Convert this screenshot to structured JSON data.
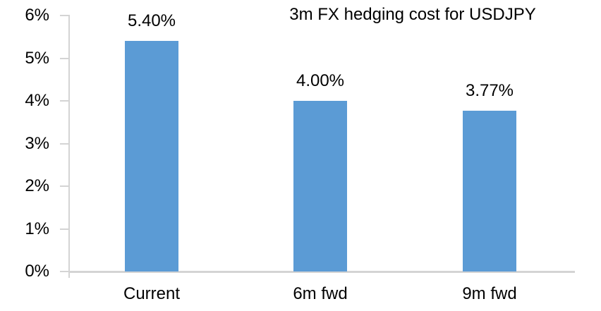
{
  "chart_data": {
    "type": "bar",
    "title": "3m FX hedging cost for USDJPY",
    "categories": [
      "Current",
      "6m fwd",
      "9m fwd"
    ],
    "values": [
      5.4,
      4.0,
      3.77
    ],
    "data_labels": [
      "5.40%",
      "4.00%",
      "3.77%"
    ],
    "y_ticks": [
      "0%",
      "1%",
      "2%",
      "3%",
      "4%",
      "5%",
      "6%"
    ],
    "ylim": [
      0,
      6
    ],
    "xlabel": "",
    "ylabel": "",
    "grid": "off",
    "legend": "none",
    "bar_color": "#5B9BD5",
    "axis_color": "#D4D4D4",
    "text_color": "#000000"
  }
}
